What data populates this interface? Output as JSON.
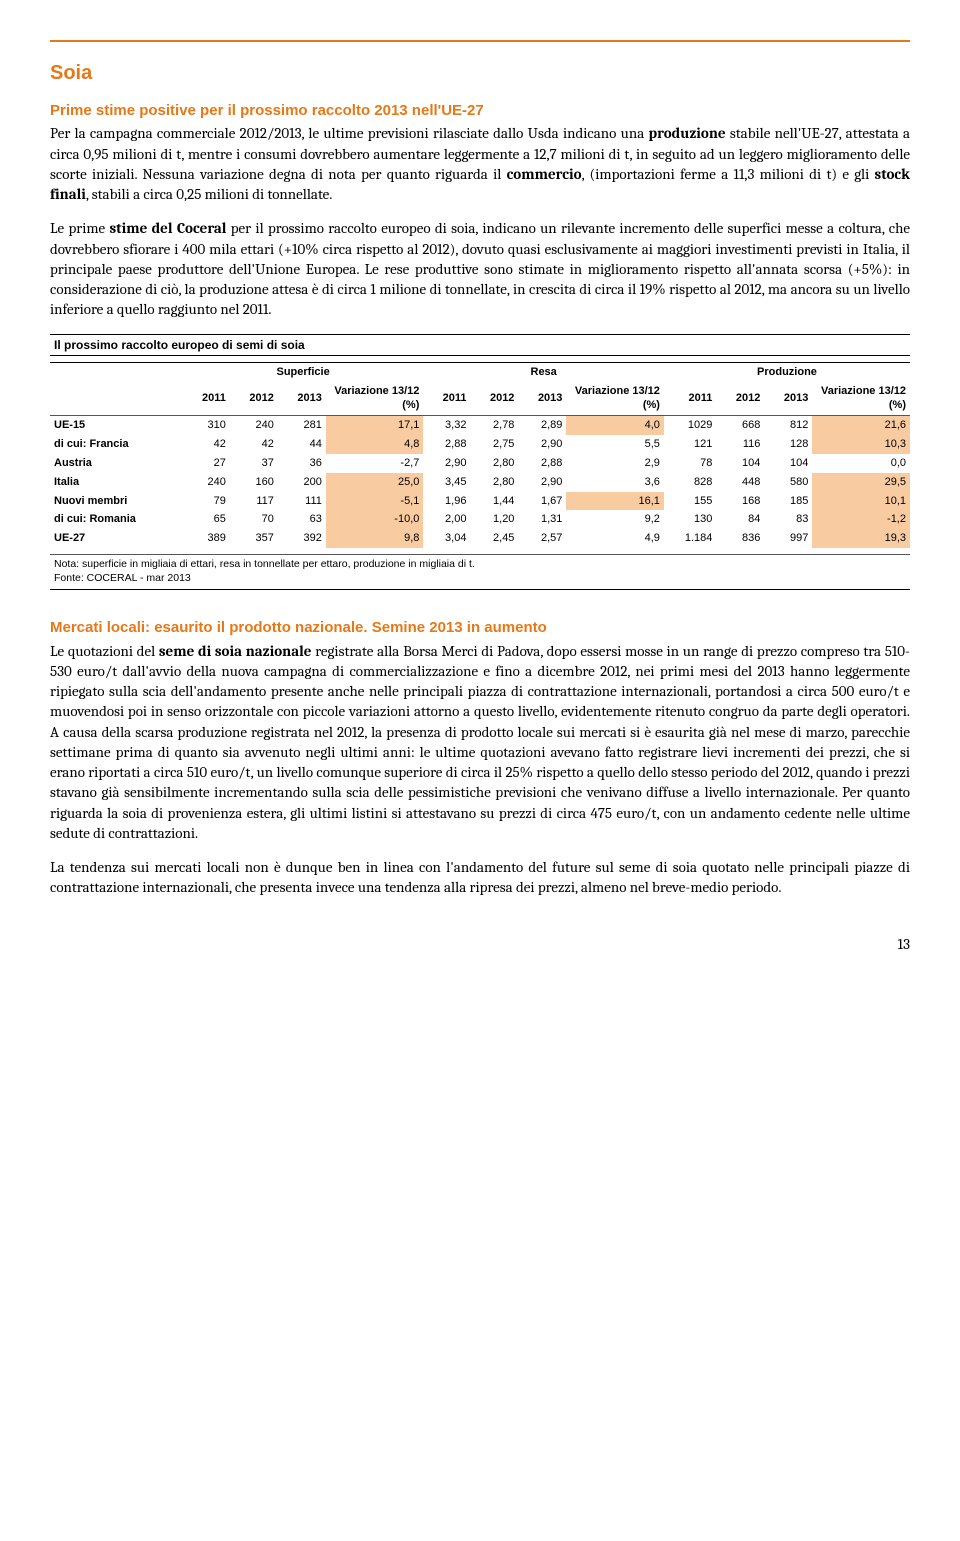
{
  "colors": {
    "accent": "#e67817",
    "highlight_bg": "#f8cba0"
  },
  "page": {
    "title": "Soia",
    "section1_title": "Prime stime positive per il prossimo raccolto 2013 nell'UE-27",
    "para1_a": "Per la campagna commerciale 2012/2013, le ultime previsioni rilasciate dallo Usda indicano una ",
    "para1_b1": "produzione",
    "para1_c": " stabile nell'UE-27, attestata a circa 0,95 milioni di t, mentre i consumi dovrebbero aumentare leggermente a 12,7 milioni di t, in seguito ad un leggero miglioramento delle scorte iniziali. Nessuna variazione degna di nota per quanto riguarda il ",
    "para1_b2": "commercio",
    "para1_d": ", (importazioni ferme a 11,3 milioni di t) e gli ",
    "para1_b3": "stock finali",
    "para1_e": ", stabili a circa 0,25 milioni di tonnellate.",
    "para2_a": "Le prime ",
    "para2_b1": "stime del Coceral",
    "para2_c": " per il prossimo raccolto europeo di soia, indicano un rilevante incremento delle superfici messe a coltura, che dovrebbero sfiorare i 400 mila ettari (+10% circa rispetto al 2012), dovuto quasi esclusivamente ai maggiori investimenti previsti in Italia, il principale paese produttore dell'Unione Europea. Le rese produttive sono stimate in miglioramento rispetto all'annata scorsa (+5%): in considerazione di ciò, la produzione attesa è di circa 1 milione di tonnellate, in crescita di circa il 19% rispetto al 2012, ma ancora su un livello inferiore a quello raggiunto nel 2011.",
    "table": {
      "title": "Il prossimo raccolto europeo di semi di soia",
      "groups": [
        "Superficie",
        "Resa",
        "Produzione"
      ],
      "subheads": [
        "2011",
        "2012",
        "2013",
        "Variazione 13/12 (%)"
      ],
      "rows": [
        {
          "label": "UE-15",
          "bold": true,
          "sup": [
            "310",
            "240",
            "281",
            "17,1"
          ],
          "resa": [
            "3,32",
            "2,78",
            "2,89",
            "4,0"
          ],
          "prod": [
            "1029",
            "668",
            "812",
            "21,6"
          ],
          "hl": [
            3,
            7,
            11
          ]
        },
        {
          "label": "di cui: Francia",
          "bold": true,
          "sup": [
            "42",
            "42",
            "44",
            "4,8"
          ],
          "resa": [
            "2,88",
            "2,75",
            "2,90",
            "5,5"
          ],
          "prod": [
            "121",
            "116",
            "128",
            "10,3"
          ],
          "hl": [
            3,
            11
          ]
        },
        {
          "label": "Austria",
          "bold": true,
          "sup": [
            "27",
            "37",
            "36",
            "-2,7"
          ],
          "resa": [
            "2,90",
            "2,80",
            "2,88",
            "2,9"
          ],
          "prod": [
            "78",
            "104",
            "104",
            "0,0"
          ],
          "hl": []
        },
        {
          "label": "Italia",
          "bold": true,
          "sup": [
            "240",
            "160",
            "200",
            "25,0"
          ],
          "resa": [
            "3,45",
            "2,80",
            "2,90",
            "3,6"
          ],
          "prod": [
            "828",
            "448",
            "580",
            "29,5"
          ],
          "hl": [
            3,
            11
          ]
        },
        {
          "label": "Nuovi membri",
          "bold": true,
          "sup": [
            "79",
            "117",
            "111",
            "-5,1"
          ],
          "resa": [
            "1,96",
            "1,44",
            "1,67",
            "16,1"
          ],
          "prod": [
            "155",
            "168",
            "185",
            "10,1"
          ],
          "hl": [
            3,
            7,
            11
          ]
        },
        {
          "label": "di cui: Romania",
          "bold": true,
          "sup": [
            "65",
            "70",
            "63",
            "-10,0"
          ],
          "resa": [
            "2,00",
            "1,20",
            "1,31",
            "9,2"
          ],
          "prod": [
            "130",
            "84",
            "83",
            "-1,2"
          ],
          "hl": [
            3,
            11
          ]
        },
        {
          "label": "UE-27",
          "bold": true,
          "sup": [
            "389",
            "357",
            "392",
            "9,8"
          ],
          "resa": [
            "3,04",
            "2,45",
            "2,57",
            "4,9"
          ],
          "prod": [
            "1.184",
            "836",
            "997",
            "19,3"
          ],
          "hl": [
            3,
            11
          ]
        }
      ],
      "note1": "Nota: superficie in migliaia di ettari, resa in tonnellate per ettaro, produzione in migliaia di t.",
      "note2": "Fonte: COCERAL - mar 2013"
    },
    "section2_title": "Mercati locali: esaurito il prodotto nazionale. Semine 2013 in aumento",
    "para3_a": "Le quotazioni del ",
    "para3_b1": "seme di soia nazionale",
    "para3_c": " registrate alla Borsa Merci di Padova, dopo essersi mosse in un range di prezzo compreso tra 510-530 euro/t dall'avvio della nuova campagna di commercializzazione e fino a dicembre 2012, nei primi mesi del 2013 hanno leggermente ripiegato sulla scia dell'andamento presente anche nelle principali piazza di contrattazione internazionali, portandosi a circa 500 euro/t e muovendosi poi in senso orizzontale con piccole variazioni attorno a questo livello, evidentemente ritenuto congruo da parte degli operatori. A causa della scarsa produzione registrata nel 2012, la presenza di prodotto locale sui mercati si è esaurita già nel mese di marzo, parecchie settimane prima di quanto sia avvenuto negli ultimi anni: le ultime quotazioni avevano fatto registrare lievi incrementi dei prezzi, che si erano riportati a circa 510 euro/t, un livello comunque superiore di circa il 25% rispetto a quello dello stesso periodo del 2012, quando i prezzi stavano già sensibilmente incrementando sulla scia delle pessimistiche previsioni che venivano diffuse a livello internazionale. Per quanto riguarda la soia di provenienza estera, gli ultimi listini si attestavano su prezzi di circa 475 euro/t, con un andamento cedente nelle ultime sedute di contrattazioni.",
    "para4": "La tendenza sui mercati locali non è dunque ben in linea con l'andamento del future sul seme di soia quotato nelle principali piazze di contrattazione internazionali, che presenta invece una tendenza alla ripresa dei prezzi, almeno nel breve-medio periodo.",
    "page_number": "13"
  }
}
